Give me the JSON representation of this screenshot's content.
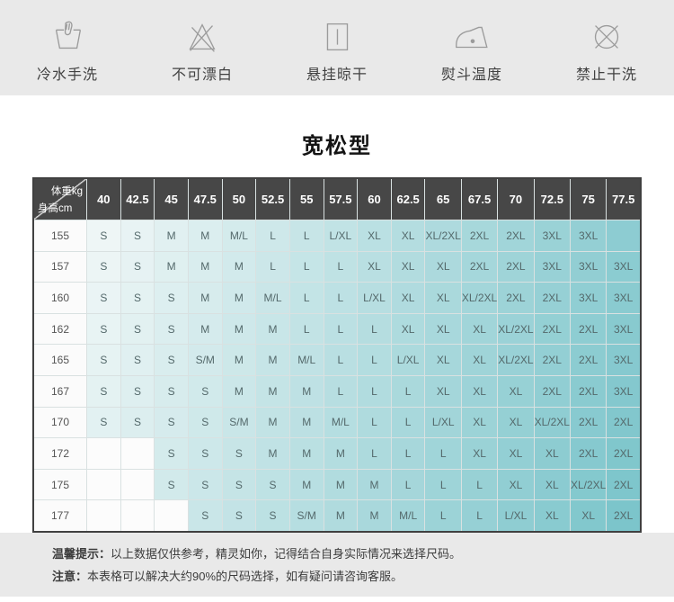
{
  "care": {
    "items": [
      {
        "icon": "hand-wash-icon",
        "label": "冷水手洗"
      },
      {
        "icon": "no-bleach-icon",
        "label": "不可漂白"
      },
      {
        "icon": "hang-dry-icon",
        "label": "悬挂晾干"
      },
      {
        "icon": "iron-temperature-icon",
        "label": "熨斗温度"
      },
      {
        "icon": "no-dry-clean-icon",
        "label": "禁止干洗"
      }
    ]
  },
  "size_chart": {
    "title": "宽松型",
    "corner": {
      "top_right": "体重kg",
      "bottom_left": "身高cm"
    },
    "weights": [
      "40",
      "42.5",
      "45",
      "47.5",
      "50",
      "52.5",
      "55",
      "57.5",
      "60",
      "62.5",
      "65",
      "67.5",
      "70",
      "72.5",
      "75",
      "77.5"
    ],
    "rows": [
      {
        "height": "155",
        "sizes": [
          "S",
          "S",
          "M",
          "M",
          "M/L",
          "L",
          "L",
          "L/XL",
          "XL",
          "XL",
          "XL/2XL",
          "2XL",
          "2XL",
          "3XL",
          "3XL",
          ""
        ]
      },
      {
        "height": "157",
        "sizes": [
          "S",
          "S",
          "M",
          "M",
          "M",
          "L",
          "L",
          "L",
          "XL",
          "XL",
          "XL",
          "2XL",
          "2XL",
          "3XL",
          "3XL",
          "3XL"
        ]
      },
      {
        "height": "160",
        "sizes": [
          "S",
          "S",
          "S",
          "M",
          "M",
          "M/L",
          "L",
          "L",
          "L/XL",
          "XL",
          "XL",
          "XL/2XL",
          "2XL",
          "2XL",
          "3XL",
          "3XL"
        ]
      },
      {
        "height": "162",
        "sizes": [
          "S",
          "S",
          "S",
          "M",
          "M",
          "M",
          "L",
          "L",
          "L",
          "XL",
          "XL",
          "XL",
          "XL/2XL",
          "2XL",
          "2XL",
          "3XL"
        ]
      },
      {
        "height": "165",
        "sizes": [
          "S",
          "S",
          "S",
          "S/M",
          "M",
          "M",
          "M/L",
          "L",
          "L",
          "L/XL",
          "XL",
          "XL",
          "XL/2XL",
          "2XL",
          "2XL",
          "3XL"
        ]
      },
      {
        "height": "167",
        "sizes": [
          "S",
          "S",
          "S",
          "S",
          "M",
          "M",
          "M",
          "L",
          "L",
          "L",
          "XL",
          "XL",
          "XL",
          "2XL",
          "2XL",
          "3XL"
        ]
      },
      {
        "height": "170",
        "sizes": [
          "S",
          "S",
          "S",
          "S",
          "S/M",
          "M",
          "M",
          "M/L",
          "L",
          "L",
          "L/XL",
          "XL",
          "XL",
          "XL/2XL",
          "2XL",
          "2XL"
        ]
      },
      {
        "height": "172",
        "sizes": [
          "",
          "",
          "S",
          "S",
          "S",
          "M",
          "M",
          "M",
          "L",
          "L",
          "L",
          "XL",
          "XL",
          "XL",
          "2XL",
          "2XL"
        ]
      },
      {
        "height": "175",
        "sizes": [
          "",
          "",
          "S",
          "S",
          "S",
          "S",
          "M",
          "M",
          "M",
          "L",
          "L",
          "L",
          "XL",
          "XL",
          "XL/2XL",
          "2XL"
        ]
      },
      {
        "height": "177",
        "sizes": [
          "",
          "",
          "",
          "S",
          "S",
          "S",
          "S/M",
          "M",
          "M",
          "M/L",
          "L",
          "L",
          "L/XL",
          "XL",
          "XL",
          "2XL"
        ]
      }
    ]
  },
  "notes": [
    {
      "prefix": "温馨提示：",
      "text": "以上数据仅供参考，精灵如你，记得结合自身实际情况来选择尺码。"
    },
    {
      "prefix": "注意：",
      "text": "本表格可以解决大约90%的尺码选择，如有疑问请咨询客服。"
    }
  ],
  "colors": {
    "strip_bg": "#e9e9e9",
    "header_bg": "#474747",
    "cell_gradient_start": "#eef6f6",
    "cell_gradient_end": "#7cc5cb",
    "empty_cell": "#fcfcfc",
    "icon_stroke": "#9b9b9b"
  }
}
